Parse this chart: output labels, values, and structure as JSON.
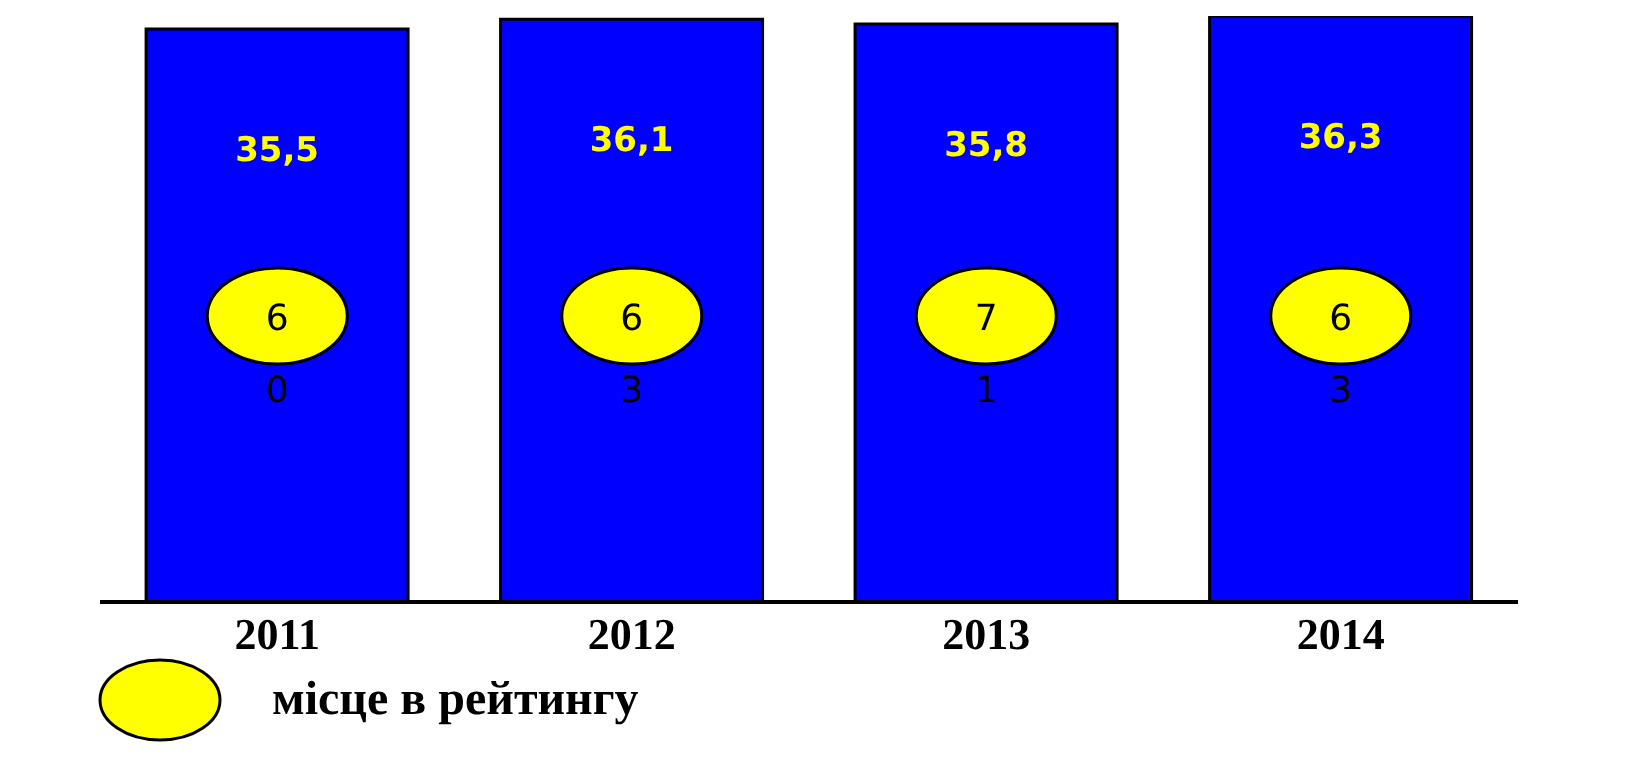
{
  "chart_data": {
    "type": "bar",
    "categories": [
      "2011",
      "2012",
      "2013",
      "2014"
    ],
    "series": [
      {
        "color": "#0000ff",
        "values": [
          35.5,
          36.1,
          35.8,
          36.3
        ],
        "value_labels": [
          "35,5",
          "36,1",
          "35,8",
          "36,3"
        ]
      }
    ],
    "tick_labels": "x",
    "annotations": [
      "6",
      "0",
      "6",
      "3",
      "7",
      "1",
      "6",
      "3",
      "місце в рейтингу"
    ]
  }
}
